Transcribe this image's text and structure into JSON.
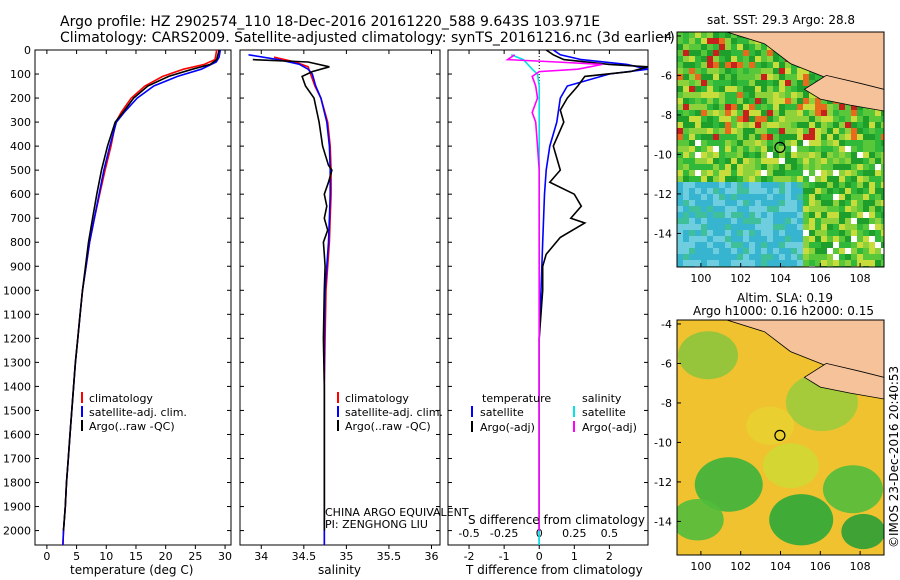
{
  "header": {
    "line1": "Argo profile: HZ 2902574_110 18-Dec-2016 20161220_588 9.643S 103.971E",
    "line2": "Climatology: CARS2009. Satellite-adjusted climatology: synTS_20161216.nc (3d earlier)"
  },
  "colors": {
    "climatology": "#ff0000",
    "satellite": "#0000ff",
    "argo": "#000000",
    "satellite_salinity": "#00e5e5",
    "argo_adj_salinity": "#ff00ff",
    "land": "#f5c29a"
  },
  "chart_data": [
    {
      "type": "line",
      "id": "temperature",
      "xlabel": "temperature (deg C)",
      "xlim": [
        -2,
        31
      ],
      "ylim": [
        2060,
        0
      ],
      "xticks": [
        0,
        5,
        10,
        15,
        20,
        25,
        30
      ],
      "yticks": [
        0,
        100,
        200,
        300,
        400,
        500,
        600,
        700,
        800,
        900,
        1000,
        1100,
        1200,
        1300,
        1400,
        1500,
        1600,
        1700,
        1800,
        1900,
        2000
      ],
      "legend": [
        "climatology",
        "satellite-adj. clim.",
        "Argo(..raw -QC)"
      ],
      "series": [
        {
          "name": "climatology",
          "color": "#ff0000",
          "points": [
            [
              28.6,
              0
            ],
            [
              28.3,
              40
            ],
            [
              26.5,
              60
            ],
            [
              23,
              80
            ],
            [
              19.5,
              110
            ],
            [
              16.5,
              150
            ],
            [
              14.2,
              200
            ],
            [
              12.5,
              260
            ],
            [
              11.6,
              300
            ],
            [
              10.8,
              400
            ],
            [
              9.8,
              500
            ],
            [
              8.9,
              600
            ],
            [
              8,
              700
            ],
            [
              7.2,
              800
            ],
            [
              6.6,
              900
            ],
            [
              6,
              1000
            ],
            [
              5.6,
              1100
            ],
            [
              5.2,
              1200
            ],
            [
              4.8,
              1300
            ],
            [
              4.5,
              1400
            ],
            [
              4.2,
              1500
            ],
            [
              3.9,
              1600
            ],
            [
              3.6,
              1700
            ],
            [
              3.3,
              1800
            ],
            [
              3.1,
              1900
            ],
            [
              2.8,
              2000
            ],
            [
              2.7,
              2060
            ]
          ]
        },
        {
          "name": "satellite-adj. clim.",
          "color": "#0000ff",
          "points": [
            [
              29.2,
              0
            ],
            [
              29,
              30
            ],
            [
              28.5,
              50
            ],
            [
              26,
              80
            ],
            [
              22,
              110
            ],
            [
              18,
              150
            ],
            [
              15.2,
              200
            ],
            [
              13,
              260
            ],
            [
              11.7,
              300
            ],
            [
              10.6,
              400
            ],
            [
              9.6,
              500
            ],
            [
              8.8,
              600
            ],
            [
              8,
              700
            ],
            [
              7.2,
              800
            ],
            [
              6.6,
              900
            ],
            [
              6,
              1000
            ],
            [
              5.6,
              1100
            ],
            [
              5.2,
              1200
            ],
            [
              4.8,
              1300
            ],
            [
              4.5,
              1400
            ],
            [
              4.2,
              1500
            ],
            [
              3.9,
              1600
            ],
            [
              3.6,
              1700
            ],
            [
              3.3,
              1800
            ],
            [
              3.1,
              1900
            ],
            [
              2.8,
              2000
            ],
            [
              2.7,
              2060
            ]
          ]
        },
        {
          "name": "Argo(..raw -QC)",
          "color": "#000000",
          "points": [
            [
              29,
              0
            ],
            [
              28.6,
              40
            ],
            [
              27.5,
              60
            ],
            [
              24.5,
              80
            ],
            [
              20.5,
              110
            ],
            [
              17,
              150
            ],
            [
              14.6,
              200
            ],
            [
              12.8,
              260
            ],
            [
              11.5,
              300
            ],
            [
              10.2,
              400
            ],
            [
              9.2,
              500
            ],
            [
              8.4,
              600
            ],
            [
              7.7,
              700
            ],
            [
              7,
              800
            ],
            [
              6.5,
              900
            ],
            [
              6,
              1000
            ],
            [
              5.6,
              1100
            ],
            [
              5.2,
              1200
            ],
            [
              4.8,
              1300
            ],
            [
              4.5,
              1400
            ],
            [
              4.2,
              1500
            ],
            [
              3.9,
              1600
            ],
            [
              3.6,
              1700
            ],
            [
              3.3,
              1800
            ],
            [
              3.1,
              1900
            ],
            [
              2.8,
              2000
            ]
          ]
        }
      ]
    },
    {
      "type": "line",
      "id": "salinity",
      "xlabel": "salinity",
      "xlim": [
        33.75,
        36.1
      ],
      "ylim": [
        2060,
        0
      ],
      "xticks": [
        34,
        34.5,
        35,
        35.5,
        36
      ],
      "legend": [
        "climatology",
        "satellite-adj. clim.",
        "Argo(..raw -QC)"
      ],
      "annotation": [
        "CHINA ARGO EQUIVALENT",
        "PI: ZENGHONG LIU"
      ],
      "series": [
        {
          "name": "climatology",
          "color": "#ff0000",
          "points": [
            [
              34.15,
              30
            ],
            [
              34.4,
              50
            ],
            [
              34.55,
              70
            ],
            [
              34.58,
              100
            ],
            [
              34.63,
              150
            ],
            [
              34.7,
              200
            ],
            [
              34.78,
              300
            ],
            [
              34.81,
              400
            ],
            [
              34.82,
              500
            ],
            [
              34.82,
              600
            ],
            [
              34.81,
              700
            ],
            [
              34.8,
              800
            ],
            [
              34.78,
              900
            ],
            [
              34.76,
              1000
            ],
            [
              34.75,
              1200
            ],
            [
              34.74,
              1400
            ],
            [
              34.74,
              1600
            ],
            [
              34.74,
              1800
            ],
            [
              34.74,
              2000
            ],
            [
              34.74,
              2060
            ]
          ]
        },
        {
          "name": "satellite-adj. clim.",
          "color": "#0000ff",
          "points": [
            [
              33.85,
              20
            ],
            [
              34.2,
              40
            ],
            [
              34.45,
              60
            ],
            [
              34.55,
              80
            ],
            [
              34.6,
              100
            ],
            [
              34.64,
              150
            ],
            [
              34.7,
              200
            ],
            [
              34.77,
              300
            ],
            [
              34.8,
              400
            ],
            [
              34.81,
              500
            ],
            [
              34.81,
              600
            ],
            [
              34.8,
              700
            ],
            [
              34.79,
              800
            ],
            [
              34.77,
              900
            ],
            [
              34.75,
              1000
            ],
            [
              34.74,
              1200
            ],
            [
              34.74,
              1400
            ],
            [
              34.74,
              1600
            ],
            [
              34.74,
              1800
            ],
            [
              34.74,
              2000
            ],
            [
              34.74,
              2060
            ]
          ]
        },
        {
          "name": "Argo(..raw -QC)",
          "color": "#000000",
          "points": [
            [
              33.9,
              40
            ],
            [
              34.55,
              50
            ],
            [
              34.8,
              70
            ],
            [
              34.6,
              90
            ],
            [
              34.48,
              110
            ],
            [
              34.52,
              150
            ],
            [
              34.62,
              200
            ],
            [
              34.68,
              300
            ],
            [
              34.72,
              400
            ],
            [
              34.79,
              480
            ],
            [
              34.83,
              500
            ],
            [
              34.79,
              550
            ],
            [
              34.74,
              600
            ],
            [
              34.77,
              650
            ],
            [
              34.74,
              700
            ],
            [
              34.78,
              750
            ],
            [
              34.73,
              800
            ],
            [
              34.74,
              850
            ],
            [
              34.75,
              900
            ],
            [
              34.74,
              1000
            ],
            [
              34.73,
              1200
            ],
            [
              34.74,
              1400
            ],
            [
              34.74,
              1600
            ],
            [
              34.74,
              1800
            ],
            [
              34.74,
              2000
            ]
          ]
        }
      ]
    },
    {
      "type": "line",
      "id": "difference",
      "xlabel": "T difference from climatology",
      "xlabel_top": "S difference from climatology",
      "xlim": [
        -2.6,
        3.1
      ],
      "ylim": [
        2060,
        0
      ],
      "xticks": [
        -2,
        -1,
        0,
        1,
        2
      ],
      "xticks_top": [
        -0.5,
        -0.25,
        0,
        0.25,
        0.5
      ],
      "legend_left_title": "temperature",
      "legend_right_title": "salinity",
      "legend_left": [
        "satellite",
        "Argo(-adj)"
      ],
      "legend_right": [
        "satellite",
        "Argo(-adj)"
      ],
      "series": [
        {
          "name": "temperature satellite",
          "color": "#0000ff",
          "points": [
            [
              0.4,
              0
            ],
            [
              0.6,
              20
            ],
            [
              1.2,
              40
            ],
            [
              2.5,
              60
            ],
            [
              3.1,
              80
            ],
            [
              2,
              100
            ],
            [
              0.8,
              150
            ],
            [
              0.6,
              200
            ],
            [
              0.5,
              300
            ],
            [
              0.3,
              400
            ],
            [
              0.2,
              500
            ],
            [
              0.15,
              600
            ],
            [
              0.1,
              800
            ],
            [
              0.05,
              1000
            ],
            [
              0,
              1200
            ],
            [
              0,
              1500
            ],
            [
              0,
              1800
            ],
            [
              0,
              2000
            ],
            [
              0,
              2060
            ]
          ]
        },
        {
          "name": "Argo(-adj) temperature",
          "color": "#000000",
          "points": [
            [
              0.2,
              0
            ],
            [
              0.4,
              20
            ],
            [
              0.7,
              40
            ],
            [
              2,
              60
            ],
            [
              3.1,
              70
            ],
            [
              2.6,
              90
            ],
            [
              1.3,
              110
            ],
            [
              1.1,
              150
            ],
            [
              0.8,
              200
            ],
            [
              0.6,
              250
            ],
            [
              0.7,
              300
            ],
            [
              0.4,
              400
            ],
            [
              0.6,
              500
            ],
            [
              0.3,
              550
            ],
            [
              1,
              600
            ],
            [
              1.2,
              650
            ],
            [
              0.9,
              700
            ],
            [
              1.3,
              720
            ],
            [
              0.6,
              780
            ],
            [
              0.2,
              850
            ],
            [
              0.1,
              900
            ],
            [
              0.1,
              1000
            ],
            [
              0,
              1200
            ],
            [
              0,
              1500
            ],
            [
              0,
              1800
            ],
            [
              0,
              2000
            ]
          ]
        },
        {
          "name": "salinity satellite",
          "color": "#00e5e5",
          "points": [
            [
              -0.8,
              20
            ],
            [
              -0.45,
              40
            ],
            [
              -0.2,
              80
            ],
            [
              -0.05,
              100
            ],
            [
              0,
              150
            ],
            [
              0,
              200
            ],
            [
              0,
              300
            ],
            [
              0,
              500
            ],
            [
              0,
              700
            ],
            [
              0,
              900
            ],
            [
              0,
              1200
            ],
            [
              0,
              1500
            ],
            [
              0,
              1800
            ],
            [
              0,
              2000
            ],
            [
              0,
              2060
            ]
          ]
        },
        {
          "name": "Argo(-adj) salinity",
          "color": "#ff00ff",
          "points": [
            [
              -0.7,
              20
            ],
            [
              -0.9,
              40
            ],
            [
              0.5,
              50
            ],
            [
              1.8,
              60
            ],
            [
              1.1,
              80
            ],
            [
              0,
              90
            ],
            [
              -0.2,
              110
            ],
            [
              -0.1,
              150
            ],
            [
              -0.05,
              200
            ],
            [
              -0.2,
              260
            ],
            [
              -0.1,
              300
            ],
            [
              -0.05,
              400
            ],
            [
              0,
              500
            ],
            [
              0,
              700
            ],
            [
              0,
              900
            ],
            [
              0,
              1200
            ],
            [
              0,
              1500
            ],
            [
              0,
              1800
            ],
            [
              0,
              2000
            ]
          ]
        }
      ]
    },
    {
      "type": "heatmap",
      "id": "sst_map",
      "title": "sat. SST: 29.3 Argo: 28.8",
      "xlim": [
        98.8,
        109.2
      ],
      "ylim": [
        -15.7,
        -3.8
      ],
      "xticks": [
        100,
        102,
        104,
        106,
        108
      ],
      "yticks": [
        -4,
        -6,
        -8,
        -10,
        -12,
        -14
      ],
      "marker": {
        "lon": 103.971,
        "lat": -9.643
      }
    },
    {
      "type": "heatmap",
      "id": "sla_map",
      "title": "Altim. SLA: 0.19",
      "subtitle": "Argo h1000: 0.16 h2000: 0.15",
      "xlim": [
        98.8,
        109.2
      ],
      "ylim": [
        -15.7,
        -3.8
      ],
      "xticks": [
        100,
        102,
        104,
        106,
        108
      ],
      "yticks": [
        -4,
        -6,
        -8,
        -10,
        -12,
        -14
      ],
      "marker": {
        "lon": 103.971,
        "lat": -9.643
      }
    }
  ],
  "footer": {
    "stamp": "©IMOS 23-Dec-2016 20:40:53"
  }
}
